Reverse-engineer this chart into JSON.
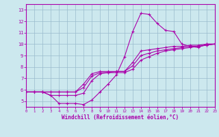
{
  "xlabel": "Windchill (Refroidissement éolien,°C)",
  "xlim": [
    0,
    23
  ],
  "ylim": [
    4.5,
    13.5
  ],
  "yticks": [
    5,
    6,
    7,
    8,
    9,
    10,
    11,
    12,
    13
  ],
  "xticks": [
    0,
    1,
    2,
    3,
    4,
    5,
    6,
    7,
    8,
    9,
    10,
    11,
    12,
    13,
    14,
    15,
    16,
    17,
    18,
    19,
    20,
    21,
    22,
    23
  ],
  "background_color": "#cce8ee",
  "line_color": "#aa00aa",
  "grid_color": "#99bbcc",
  "line1_x": [
    0,
    1,
    2,
    3,
    4,
    5,
    6,
    7,
    8,
    9,
    10,
    11,
    12,
    13,
    14,
    15,
    16,
    17,
    18,
    19,
    20,
    21,
    22,
    23
  ],
  "line1_y": [
    5.8,
    5.8,
    5.8,
    5.5,
    4.8,
    4.8,
    4.8,
    4.7,
    5.1,
    5.8,
    6.5,
    7.3,
    8.9,
    11.1,
    12.7,
    12.6,
    11.8,
    11.2,
    11.1,
    10.0,
    9.8,
    9.7,
    10.0,
    10.0
  ],
  "line2_x": [
    0,
    1,
    2,
    3,
    4,
    5,
    6,
    7,
    8,
    9,
    10,
    11,
    12,
    13,
    14,
    15,
    16,
    17,
    18,
    19,
    20,
    21,
    22,
    23
  ],
  "line2_y": [
    5.8,
    5.8,
    5.8,
    5.8,
    5.8,
    5.8,
    5.8,
    6.5,
    7.4,
    7.6,
    7.6,
    7.6,
    7.6,
    8.4,
    9.4,
    9.5,
    9.6,
    9.7,
    9.8,
    9.8,
    9.9,
    9.9,
    10.0,
    10.0
  ],
  "line3_x": [
    0,
    1,
    2,
    3,
    4,
    5,
    6,
    7,
    8,
    9,
    10,
    11,
    12,
    13,
    14,
    15,
    16,
    17,
    18,
    19,
    20,
    21,
    22,
    23
  ],
  "line3_y": [
    5.8,
    5.8,
    5.8,
    5.8,
    5.8,
    5.8,
    5.8,
    6.2,
    7.2,
    7.5,
    7.5,
    7.6,
    7.6,
    8.1,
    9.0,
    9.2,
    9.4,
    9.5,
    9.6,
    9.7,
    9.8,
    9.8,
    9.9,
    10.0
  ],
  "line4_x": [
    0,
    1,
    2,
    3,
    4,
    5,
    6,
    7,
    8,
    9,
    10,
    11,
    12,
    13,
    14,
    15,
    16,
    17,
    18,
    19,
    20,
    21,
    22,
    23
  ],
  "line4_y": [
    5.8,
    5.8,
    5.8,
    5.5,
    5.5,
    5.5,
    5.5,
    5.7,
    6.8,
    7.4,
    7.5,
    7.5,
    7.5,
    7.8,
    8.6,
    8.9,
    9.2,
    9.4,
    9.5,
    9.6,
    9.7,
    9.8,
    9.9,
    10.0
  ]
}
